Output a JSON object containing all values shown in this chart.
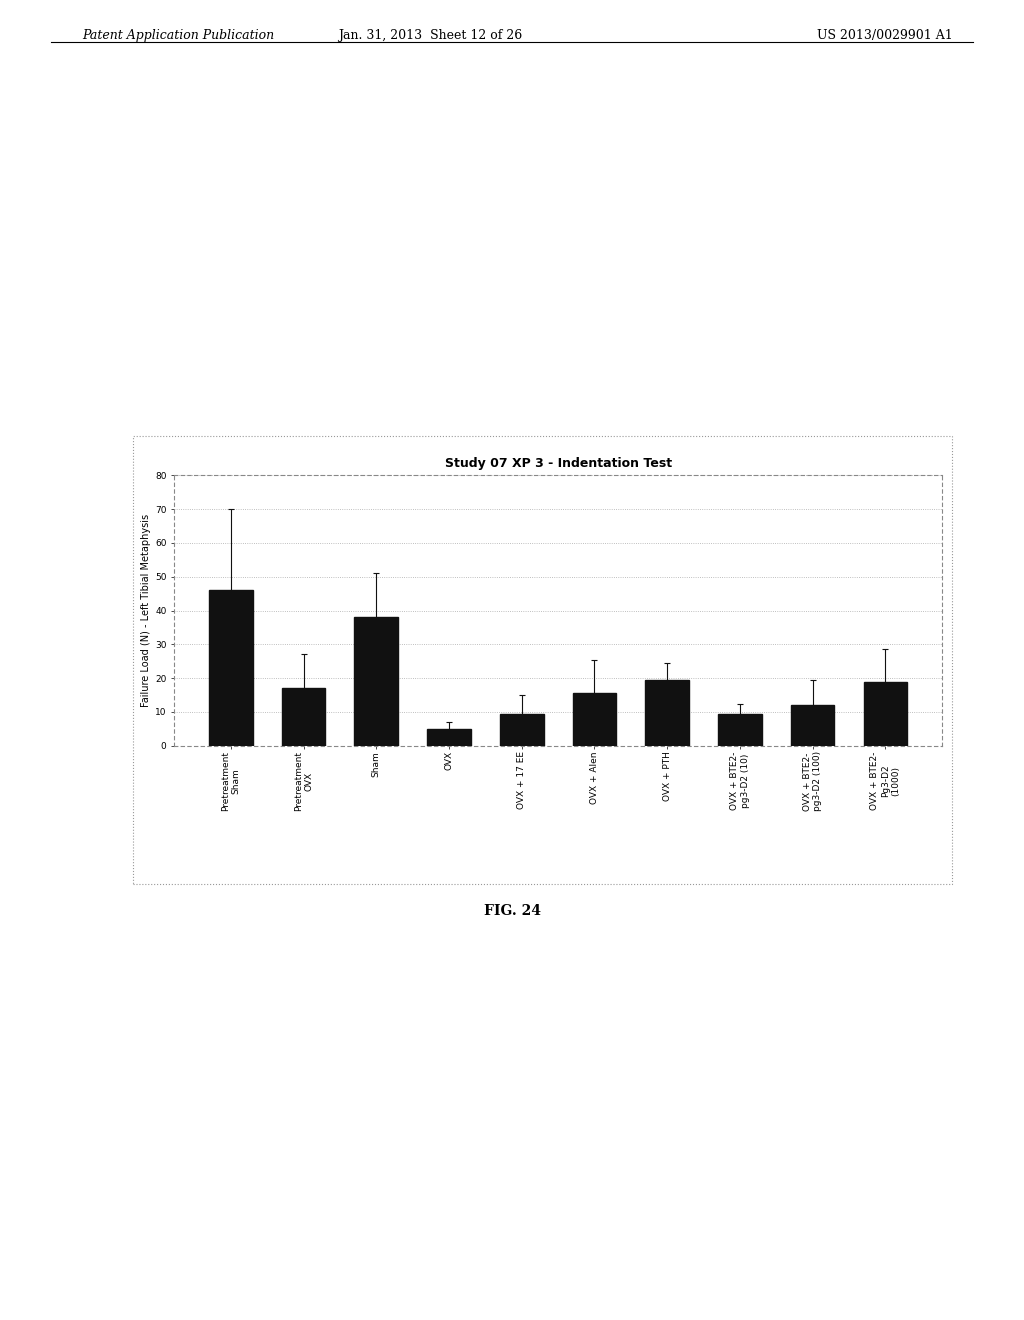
{
  "title": "Study 07 XP 3 - Indentation Test",
  "ylabel": "Failure Load (N) - Left Tibial Metaphysis",
  "ylim": [
    0,
    80
  ],
  "yticks": [
    0,
    10,
    20,
    30,
    40,
    50,
    60,
    70,
    80
  ],
  "categories": [
    "Pretreatment\nSham",
    "Pretreatment\nOVX",
    "Sham",
    "OVX",
    "OVX + 17 EE",
    "OVX + Alen",
    "OVX + PTH",
    "OVX + BTE2-\npg3-D2 (10)",
    "OVX + BTE2-\npg3-D2 (100)",
    "OVX + BTE2-\nPg3-D2\n(1000)"
  ],
  "values": [
    46,
    17,
    38,
    5,
    9.5,
    15.5,
    19.5,
    9.5,
    12,
    19
  ],
  "errors": [
    24,
    10,
    13,
    2,
    5.5,
    10,
    5,
    3,
    7.5,
    9.5
  ],
  "bar_color": "#111111",
  "error_color": "#111111",
  "background_color": "#ffffff",
  "chart_bg": "#ffffff",
  "title_fontsize": 9,
  "label_fontsize": 7,
  "tick_fontsize": 6.5,
  "fig_caption": "FIG. 24",
  "header_left": "Patent Application Publication",
  "header_center": "Jan. 31, 2013  Sheet 12 of 26",
  "header_right": "US 2013/0029901 A1"
}
